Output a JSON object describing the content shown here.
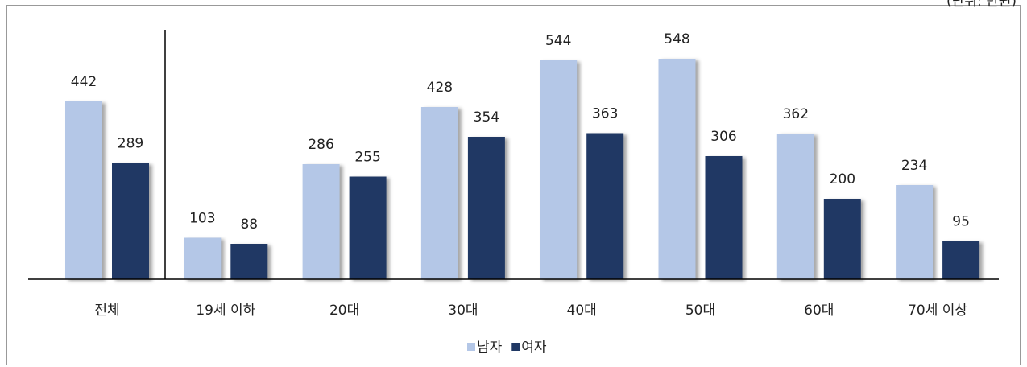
{
  "chart_data": {
    "type": "bar",
    "unit": "(단위: 만원)",
    "categories": [
      "전체",
      "19세 이하",
      "20대",
      "30대",
      "40대",
      "50대",
      "60대",
      "70세 이상"
    ],
    "series": [
      {
        "name": "남자",
        "color": "#b4c7e7",
        "values": [
          442,
          103,
          286,
          428,
          544,
          548,
          362,
          234
        ]
      },
      {
        "name": "여자",
        "color": "#203864",
        "values": [
          289,
          88,
          255,
          354,
          363,
          306,
          200,
          95
        ]
      }
    ],
    "ylim": [
      0,
      600
    ]
  }
}
